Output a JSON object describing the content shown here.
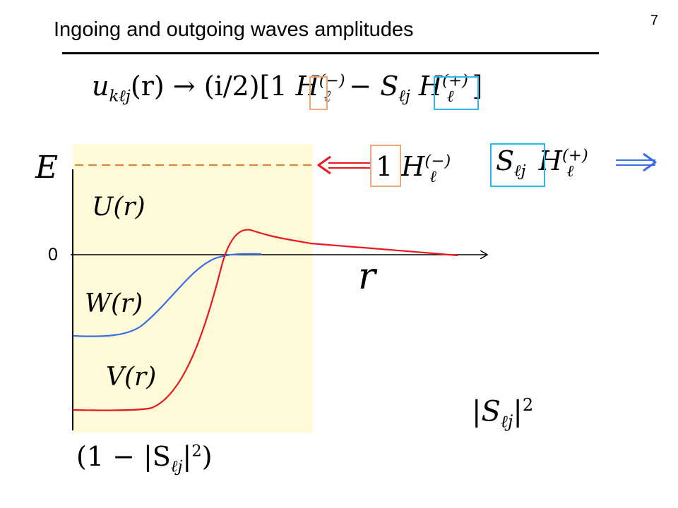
{
  "slide": {
    "number": "7",
    "title": "Ingoing and outgoing waves amplitudes"
  },
  "equation": {
    "lhs_symbol": "u",
    "lhs_sub": "kℓj",
    "lhs_arg": "(r)",
    "arrow": "→",
    "prefactor": "(i/2)[",
    "coef_in": "1",
    "H": "H",
    "sup_in": "(−)",
    "sub_l": "ℓ",
    "minus": "−",
    "S": "S",
    "S_sub": "ℓj",
    "sup_out": "(+)",
    "close": "]"
  },
  "diagram": {
    "energy_label": "E",
    "zero_label": "0",
    "r_label": "r",
    "U_label": "U(r)",
    "W_label": "W(r)",
    "V_label": "V(r)",
    "incoming_coef": "1",
    "outgoing_S": "S",
    "outgoing_S_sub": "ℓj",
    "H": "H",
    "sub_l": "ℓ",
    "sup_minus": "(−)",
    "sup_plus": "(+)",
    "abs_S_sq": "|S",
    "abs_S_sub": "ℓj",
    "abs_close": "|",
    "square": "2",
    "absorption_open": "(1 − |S",
    "absorption_sub": "ℓj",
    "absorption_close": "|",
    "absorption_sq": "2",
    "absorption_end": ")"
  },
  "colors": {
    "region_fill": "#fffbd8",
    "energy_dash": "#d9883a",
    "orange_box": "#f0a878",
    "cyan_box": "#2ab8e6",
    "red": "#e8191e",
    "blue": "#3a6ee6"
  }
}
